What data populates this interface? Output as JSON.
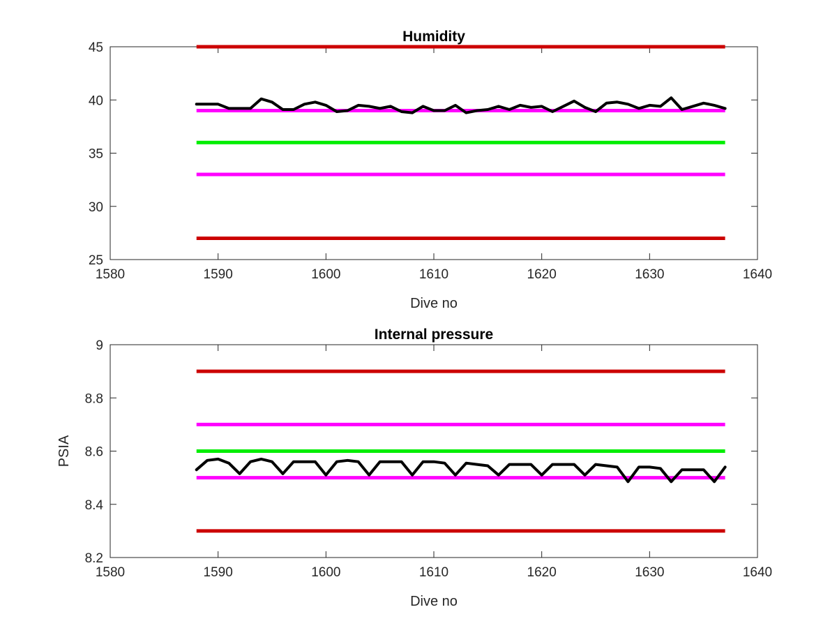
{
  "chart_data": [
    {
      "type": "line",
      "title": "Humidity",
      "xlabel": "Dive no",
      "ylabel": "",
      "xlim": [
        1580,
        1640
      ],
      "ylim": [
        25,
        45
      ],
      "xticks": [
        1580,
        1590,
        1600,
        1610,
        1620,
        1630,
        1640
      ],
      "xtick_labels": [
        "1580",
        "1590",
        "1600",
        "1610",
        "1620",
        "1630",
        "1640"
      ],
      "yticks": [
        25,
        30,
        35,
        40,
        45
      ],
      "ytick_labels": [
        "25",
        "30",
        "35",
        "40",
        "45"
      ],
      "grid": false,
      "reference_lines": [
        {
          "y": 45,
          "x_range": [
            1588,
            1637
          ],
          "color": "#cc0000"
        },
        {
          "y": 39,
          "x_range": [
            1588,
            1637
          ],
          "color": "#ff00ff"
        },
        {
          "y": 36,
          "x_range": [
            1588,
            1637
          ],
          "color": "#00ee00"
        },
        {
          "y": 33,
          "x_range": [
            1588,
            1637
          ],
          "color": "#ff00ff"
        },
        {
          "y": 27,
          "x_range": [
            1588,
            1637
          ],
          "color": "#cc0000"
        }
      ],
      "series": [
        {
          "color": "#000000",
          "x": [
            1588,
            1589,
            1590,
            1591,
            1592,
            1593,
            1594,
            1595,
            1596,
            1597,
            1598,
            1599,
            1600,
            1601,
            1602,
            1603,
            1604,
            1605,
            1606,
            1607,
            1608,
            1609,
            1610,
            1611,
            1612,
            1613,
            1614,
            1615,
            1616,
            1617,
            1618,
            1619,
            1620,
            1621,
            1622,
            1623,
            1624,
            1625,
            1626,
            1627,
            1628,
            1629,
            1630,
            1631,
            1632,
            1633,
            1634,
            1635,
            1636,
            1637
          ],
          "y": [
            39.6,
            39.6,
            39.6,
            39.2,
            39.2,
            39.2,
            40.1,
            39.8,
            39.1,
            39.1,
            39.6,
            39.8,
            39.5,
            38.9,
            39.0,
            39.5,
            39.4,
            39.2,
            39.4,
            38.9,
            38.8,
            39.4,
            39.0,
            39.0,
            39.5,
            38.8,
            39.0,
            39.1,
            39.4,
            39.1,
            39.5,
            39.3,
            39.4,
            38.9,
            39.4,
            39.9,
            39.3,
            38.9,
            39.7,
            39.8,
            39.6,
            39.2,
            39.5,
            39.4,
            40.2,
            39.1,
            39.4,
            39.7,
            39.5,
            39.2
          ]
        }
      ]
    },
    {
      "type": "line",
      "title": "Internal pressure",
      "xlabel": "Dive no",
      "ylabel": "PSIA",
      "xlim": [
        1580,
        1640
      ],
      "ylim": [
        8.2,
        9.0
      ],
      "xticks": [
        1580,
        1590,
        1600,
        1610,
        1620,
        1630,
        1640
      ],
      "xtick_labels": [
        "1580",
        "1590",
        "1600",
        "1610",
        "1620",
        "1630",
        "1640"
      ],
      "yticks": [
        8.2,
        8.4,
        8.6,
        8.8,
        9.0
      ],
      "ytick_labels": [
        "8.2",
        "8.4",
        "8.6",
        "8.8",
        "9"
      ],
      "grid": false,
      "reference_lines": [
        {
          "y": 8.9,
          "x_range": [
            1588,
            1637
          ],
          "color": "#cc0000"
        },
        {
          "y": 8.7,
          "x_range": [
            1588,
            1637
          ],
          "color": "#ff00ff"
        },
        {
          "y": 8.6,
          "x_range": [
            1588,
            1637
          ],
          "color": "#00ee00"
        },
        {
          "y": 8.5,
          "x_range": [
            1588,
            1637
          ],
          "color": "#ff00ff"
        },
        {
          "y": 8.3,
          "x_range": [
            1588,
            1637
          ],
          "color": "#cc0000"
        }
      ],
      "series": [
        {
          "color": "#000000",
          "x": [
            1588,
            1589,
            1590,
            1591,
            1592,
            1593,
            1594,
            1595,
            1596,
            1597,
            1598,
            1599,
            1600,
            1601,
            1602,
            1603,
            1604,
            1605,
            1606,
            1607,
            1608,
            1609,
            1610,
            1611,
            1612,
            1613,
            1614,
            1615,
            1616,
            1617,
            1618,
            1619,
            1620,
            1621,
            1622,
            1623,
            1624,
            1625,
            1626,
            1627,
            1628,
            1629,
            1630,
            1631,
            1632,
            1633,
            1634,
            1635,
            1636,
            1637
          ],
          "y": [
            8.53,
            8.565,
            8.57,
            8.555,
            8.515,
            8.56,
            8.57,
            8.56,
            8.515,
            8.56,
            8.56,
            8.56,
            8.51,
            8.56,
            8.565,
            8.56,
            8.51,
            8.56,
            8.56,
            8.56,
            8.51,
            8.56,
            8.56,
            8.555,
            8.51,
            8.555,
            8.55,
            8.545,
            8.51,
            8.55,
            8.55,
            8.55,
            8.51,
            8.55,
            8.55,
            8.55,
            8.51,
            8.55,
            8.545,
            8.54,
            8.485,
            8.54,
            8.54,
            8.535,
            8.485,
            8.53,
            8.53,
            8.53,
            8.485,
            8.54
          ]
        }
      ]
    }
  ]
}
